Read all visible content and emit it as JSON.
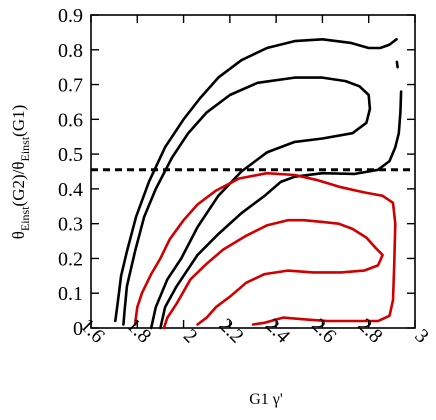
{
  "chart_data": {
    "type": "line",
    "title": "",
    "xlabel": "G1 γ'",
    "ylabel": {
      "base": "θ",
      "sub1": "Einst",
      "mid": "(G2)/θ",
      "sub2": "Einst",
      "tail": "(G1)"
    },
    "xlim": [
      1.6,
      3.0
    ],
    "ylim": [
      0,
      0.9
    ],
    "xticks": [
      "1.6",
      "1.8",
      "2",
      "2.2",
      "2.4",
      "2.6",
      "2.8",
      "3"
    ],
    "yticks": [
      "0",
      "0.1",
      "0.2",
      "0.3",
      "0.4",
      "0.5",
      "0.6",
      "0.7",
      "0.8",
      "0.9"
    ],
    "grid": false,
    "series": [
      {
        "kind": "contour",
        "color": "#000000",
        "points": [
          [
            1.705,
            0.02
          ],
          [
            1.715,
            0.07
          ],
          [
            1.73,
            0.15
          ],
          [
            1.755,
            0.22
          ],
          [
            1.795,
            0.32
          ],
          [
            1.85,
            0.42
          ],
          [
            1.92,
            0.52
          ],
          [
            2.0,
            0.6
          ],
          [
            2.07,
            0.66
          ],
          [
            2.15,
            0.72
          ],
          [
            2.25,
            0.77
          ],
          [
            2.36,
            0.805
          ],
          [
            2.48,
            0.825
          ],
          [
            2.6,
            0.83
          ],
          [
            2.72,
            0.82
          ],
          [
            2.8,
            0.805
          ],
          [
            2.85,
            0.805
          ],
          [
            2.89,
            0.815
          ],
          [
            2.92,
            0.83
          ],
          null,
          [
            2.922,
            0.765
          ],
          [
            2.925,
            0.75
          ],
          null,
          [
            2.94,
            0.68
          ],
          [
            2.937,
            0.62
          ],
          [
            2.93,
            0.56
          ],
          [
            2.915,
            0.52
          ],
          [
            2.89,
            0.48
          ],
          [
            2.84,
            0.455
          ],
          [
            2.74,
            0.443
          ],
          [
            2.6,
            0.445
          ],
          [
            2.48,
            0.435
          ],
          [
            2.42,
            0.42
          ],
          [
            2.35,
            0.38
          ],
          [
            2.25,
            0.33
          ],
          [
            2.15,
            0.27
          ],
          [
            2.06,
            0.21
          ],
          [
            1.97,
            0.12
          ],
          [
            1.92,
            0.06
          ],
          [
            1.9,
            0.0
          ]
        ]
      },
      {
        "kind": "contour",
        "color": "#000000",
        "points": [
          [
            1.74,
            0.01
          ],
          [
            1.745,
            0.05
          ],
          [
            1.755,
            0.12
          ],
          [
            1.79,
            0.22
          ],
          [
            1.83,
            0.32
          ],
          [
            1.88,
            0.4
          ],
          [
            1.95,
            0.49
          ],
          [
            2.02,
            0.56
          ],
          [
            2.1,
            0.62
          ],
          [
            2.2,
            0.67
          ],
          [
            2.32,
            0.705
          ],
          [
            2.48,
            0.72
          ],
          [
            2.6,
            0.72
          ],
          [
            2.7,
            0.71
          ],
          [
            2.76,
            0.695
          ],
          [
            2.8,
            0.67
          ],
          [
            2.805,
            0.63
          ],
          [
            2.79,
            0.59
          ],
          [
            2.73,
            0.56
          ],
          [
            2.6,
            0.545
          ],
          [
            2.48,
            0.535
          ],
          [
            2.36,
            0.505
          ],
          [
            2.25,
            0.45
          ],
          [
            2.15,
            0.38
          ],
          [
            2.06,
            0.29
          ],
          [
            1.99,
            0.2
          ],
          [
            1.93,
            0.14
          ],
          [
            1.88,
            0.06
          ],
          [
            1.86,
            0.0
          ]
        ]
      },
      {
        "kind": "contour",
        "color": "#d00000",
        "points": [
          [
            1.79,
            0.01
          ],
          [
            1.8,
            0.06
          ],
          [
            1.82,
            0.1
          ],
          [
            1.86,
            0.155
          ],
          [
            1.9,
            0.2
          ],
          [
            1.94,
            0.255
          ],
          [
            2.0,
            0.31
          ],
          [
            2.06,
            0.355
          ],
          [
            2.14,
            0.395
          ],
          [
            2.24,
            0.43
          ],
          [
            2.36,
            0.445
          ],
          [
            2.48,
            0.44
          ],
          [
            2.58,
            0.425
          ],
          [
            2.68,
            0.405
          ],
          [
            2.78,
            0.39
          ],
          [
            2.86,
            0.38
          ],
          [
            2.905,
            0.36
          ],
          [
            2.915,
            0.3
          ],
          [
            2.91,
            0.18
          ],
          [
            2.905,
            0.08
          ],
          [
            2.89,
            0.035
          ],
          [
            2.84,
            0.02
          ],
          [
            2.74,
            0.02
          ],
          [
            2.62,
            0.02
          ],
          [
            2.52,
            0.025
          ],
          [
            2.43,
            0.03
          ],
          [
            2.35,
            0.015
          ],
          [
            2.3,
            0.01
          ]
        ]
      },
      {
        "kind": "contour",
        "color": "#d00000",
        "points": [
          [
            2.06,
            0.01
          ],
          [
            2.1,
            0.03
          ],
          [
            2.14,
            0.06
          ],
          [
            2.2,
            0.09
          ],
          [
            2.27,
            0.13
          ],
          [
            2.35,
            0.155
          ],
          [
            2.45,
            0.165
          ],
          [
            2.56,
            0.16
          ],
          [
            2.68,
            0.16
          ],
          [
            2.78,
            0.165
          ],
          [
            2.84,
            0.18
          ],
          [
            2.86,
            0.21
          ],
          [
            2.83,
            0.23
          ],
          [
            2.79,
            0.26
          ],
          [
            2.73,
            0.285
          ],
          [
            2.67,
            0.3
          ],
          [
            2.6,
            0.305
          ],
          [
            2.52,
            0.31
          ],
          [
            2.45,
            0.31
          ],
          [
            2.36,
            0.295
          ],
          [
            2.27,
            0.265
          ],
          [
            2.17,
            0.225
          ],
          [
            2.1,
            0.185
          ],
          [
            2.03,
            0.14
          ],
          [
            1.97,
            0.07
          ],
          [
            1.93,
            0.03
          ],
          [
            1.915,
            0.0
          ]
        ]
      },
      {
        "kind": "reference",
        "style": "dashed",
        "color": "#000000",
        "points": [
          [
            1.6,
            0.455
          ],
          [
            3.0,
            0.455
          ]
        ]
      }
    ]
  }
}
